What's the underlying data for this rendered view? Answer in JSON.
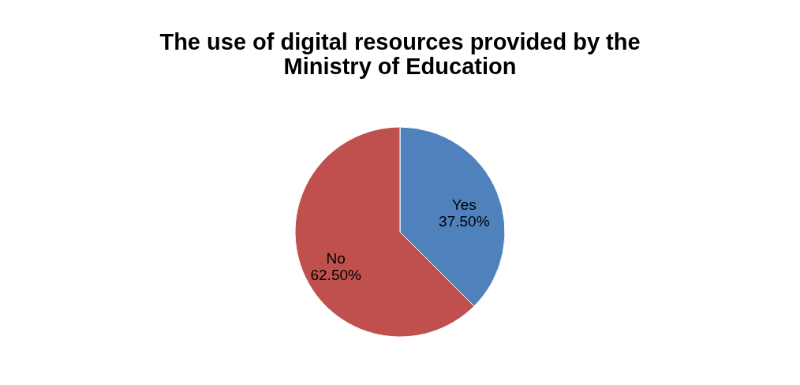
{
  "chart_data": {
    "type": "pie",
    "title": "The use of digital resources provided by the Ministry of Education",
    "categories": [
      "Yes",
      "No"
    ],
    "values": [
      37.5,
      62.5
    ],
    "colors": [
      "#4f81bd",
      "#c0504d"
    ],
    "value_labels": [
      "37.50%",
      "62.50%"
    ],
    "legend": false
  }
}
